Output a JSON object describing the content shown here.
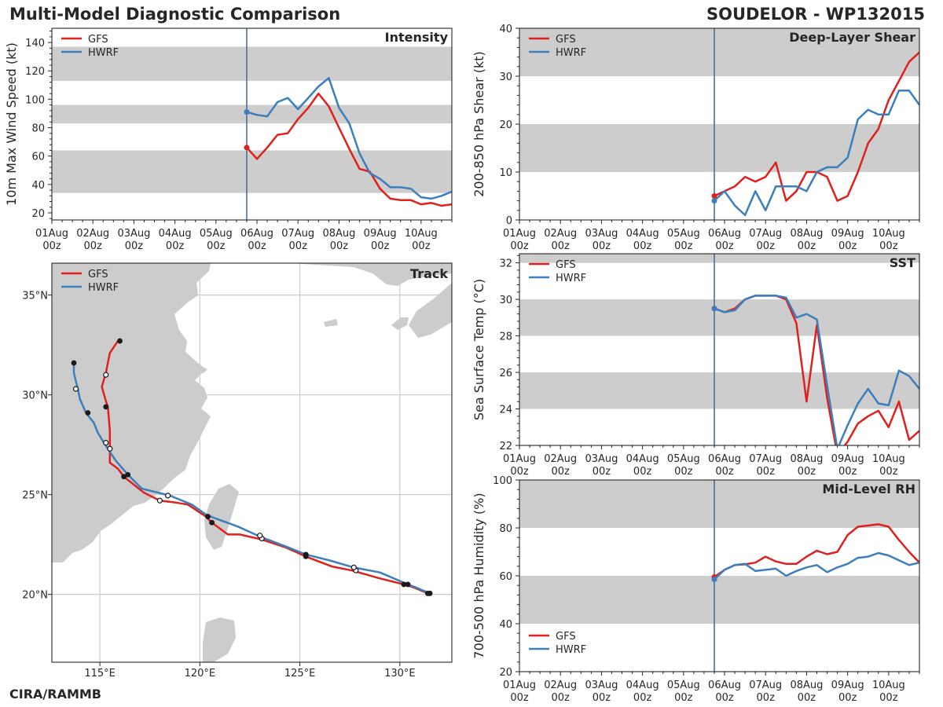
{
  "header": {
    "title": "Multi-Model Diagnostic Comparison",
    "storm": "SOUDELOR - WP132015",
    "credit": "CIRA/RAMMB"
  },
  "colors": {
    "gfs": "#e0201c",
    "hwrf": "#3b7fbc",
    "band": "#cdcdcd",
    "initline": "#4a6f9a",
    "land": "#cccccc",
    "grid": "#cccccc"
  },
  "chart_data": [
    {
      "id": "intensity",
      "type": "line",
      "title": "Intensity",
      "ylabel": "10m Max Wind Speed (kt)",
      "xlim": [
        0,
        9.75
      ],
      "ylim": [
        15,
        150
      ],
      "yticks": [
        20,
        40,
        60,
        80,
        100,
        120,
        140
      ],
      "xticks": [
        0,
        1,
        2,
        3,
        4,
        5,
        6,
        7,
        8,
        9
      ],
      "xtick_labels": [
        [
          "01Aug",
          "00z"
        ],
        [
          "02Aug",
          "00z"
        ],
        [
          "03Aug",
          "00z"
        ],
        [
          "04Aug",
          "00z"
        ],
        [
          "05Aug",
          "00z"
        ],
        [
          "06Aug",
          "00z"
        ],
        [
          "07Aug",
          "00z"
        ],
        [
          "08Aug",
          "00z"
        ],
        [
          "09Aug",
          "00z"
        ],
        [
          "10Aug",
          "00z"
        ]
      ],
      "bands": [
        [
          34,
          64
        ],
        [
          83,
          96
        ],
        [
          113,
          137
        ]
      ],
      "init_x": 4.75,
      "legend": [
        "GFS",
        "HWRF"
      ],
      "series": [
        {
          "name": "GFS",
          "x": [
            4.75,
            5,
            5.25,
            5.5,
            5.75,
            6,
            6.25,
            6.5,
            6.75,
            7,
            7.25,
            7.5,
            7.75,
            8,
            8.25,
            8.5,
            8.75,
            9,
            9.25,
            9.5,
            9.75
          ],
          "y": [
            66,
            58,
            66,
            75,
            76,
            86,
            94,
            104,
            95,
            80,
            65,
            51,
            49,
            37,
            30,
            29,
            29,
            26,
            27,
            25,
            26
          ]
        },
        {
          "name": "HWRF",
          "x": [
            4.75,
            5,
            5.25,
            5.5,
            5.75,
            6,
            6.25,
            6.5,
            6.75,
            7,
            7.25,
            7.5,
            7.75,
            8,
            8.25,
            8.5,
            8.75,
            9,
            9.25,
            9.5,
            9.75
          ],
          "y": [
            91,
            89,
            88,
            98,
            101,
            93,
            101,
            109,
            115,
            94,
            83,
            62,
            48,
            44,
            38,
            38,
            37,
            31,
            30,
            32,
            35
          ]
        }
      ]
    },
    {
      "id": "shear",
      "type": "line",
      "title": "Deep-Layer Shear",
      "ylabel": "200-850 hPa Shear (kt)",
      "xlim": [
        0,
        9.75
      ],
      "ylim": [
        0,
        40
      ],
      "yticks": [
        0,
        10,
        20,
        30,
        40
      ],
      "xticks": [
        0,
        1,
        2,
        3,
        4,
        5,
        6,
        7,
        8,
        9
      ],
      "xtick_labels": [
        [
          "01Aug",
          "00z"
        ],
        [
          "02Aug",
          "00z"
        ],
        [
          "03Aug",
          "00z"
        ],
        [
          "04Aug",
          "00z"
        ],
        [
          "05Aug",
          "00z"
        ],
        [
          "06Aug",
          "00z"
        ],
        [
          "07Aug",
          "00z"
        ],
        [
          "08Aug",
          "00z"
        ],
        [
          "09Aug",
          "00z"
        ],
        [
          "10Aug",
          "00z"
        ]
      ],
      "bands": [
        [
          10,
          20
        ],
        [
          30,
          40
        ]
      ],
      "init_x": 4.75,
      "legend": [
        "GFS",
        "HWRF"
      ],
      "series": [
        {
          "name": "GFS",
          "x": [
            4.75,
            5,
            5.25,
            5.5,
            5.75,
            6,
            6.25,
            6.5,
            6.75,
            7,
            7.25,
            7.5,
            7.75,
            8,
            8.25,
            8.5,
            8.75,
            9,
            9.25,
            9.5,
            9.75
          ],
          "y": [
            5,
            6,
            7,
            9,
            8,
            9,
            12,
            4,
            6,
            10,
            10,
            9,
            4,
            5,
            10,
            16,
            19,
            25,
            29,
            33,
            35
          ]
        },
        {
          "name": "HWRF",
          "x": [
            4.75,
            5,
            5.25,
            5.5,
            5.75,
            6,
            6.25,
            6.5,
            6.75,
            7,
            7.25,
            7.5,
            7.75,
            8,
            8.25,
            8.5,
            8.75,
            9,
            9.25,
            9.5,
            9.75
          ],
          "y": [
            4,
            6,
            3,
            1,
            6,
            2,
            7,
            7,
            7,
            6,
            10,
            11,
            11,
            13,
            21,
            23,
            22,
            22,
            27,
            27,
            24
          ]
        }
      ]
    },
    {
      "id": "sst",
      "type": "line",
      "title": "SST",
      "ylabel": "Sea Surface Temp (°C)",
      "xlim": [
        0,
        9.75
      ],
      "ylim": [
        22,
        32.5
      ],
      "yticks": [
        22,
        24,
        26,
        28,
        30,
        32
      ],
      "xticks": [
        0,
        1,
        2,
        3,
        4,
        5,
        6,
        7,
        8,
        9
      ],
      "xtick_labels": [
        [
          "01Aug",
          "00z"
        ],
        [
          "02Aug",
          "00z"
        ],
        [
          "03Aug",
          "00z"
        ],
        [
          "04Aug",
          "00z"
        ],
        [
          "05Aug",
          "00z"
        ],
        [
          "06Aug",
          "00z"
        ],
        [
          "07Aug",
          "00z"
        ],
        [
          "08Aug",
          "00z"
        ],
        [
          "09Aug",
          "00z"
        ],
        [
          "10Aug",
          "00z"
        ]
      ],
      "bands": [
        [
          24,
          26
        ],
        [
          28,
          30
        ],
        [
          32,
          34
        ]
      ],
      "init_x": 4.75,
      "legend": [
        "GFS",
        "HWRF"
      ],
      "series": [
        {
          "name": "GFS",
          "x": [
            4.75,
            5,
            5.25,
            5.5,
            5.75,
            6,
            6.25,
            6.5,
            6.75,
            7,
            7.25,
            7.5,
            7.75,
            8,
            8.25,
            8.5,
            8.75,
            9,
            9.25,
            9.5,
            9.75
          ],
          "y": [
            29.5,
            29.3,
            29.5,
            30.0,
            30.2,
            30.2,
            30.2,
            30.0,
            28.7,
            24.4,
            28.6,
            24.6,
            21.5,
            22.2,
            23.2,
            23.6,
            23.9,
            23.0,
            24.4,
            22.3,
            22.8
          ]
        },
        {
          "name": "HWRF",
          "x": [
            4.75,
            5,
            5.25,
            5.5,
            5.75,
            6,
            6.25,
            6.5,
            6.75,
            7,
            7.25,
            7.5,
            7.75,
            8,
            8.25,
            8.5,
            8.75,
            9,
            9.25,
            9.5,
            9.75
          ],
          "y": [
            29.5,
            29.3,
            29.4,
            30.0,
            30.2,
            30.2,
            30.2,
            30.1,
            29.0,
            29.2,
            28.9,
            25.3,
            21.8,
            23.1,
            24.3,
            25.1,
            24.3,
            24.2,
            26.1,
            25.8,
            25.1
          ]
        }
      ]
    },
    {
      "id": "rh",
      "type": "line",
      "title": "Mid-Level RH",
      "ylabel": "700-500 hPa Humidity (%)",
      "xlim": [
        0,
        9.75
      ],
      "ylim": [
        20,
        100
      ],
      "yticks": [
        20,
        40,
        60,
        80,
        100
      ],
      "xticks": [
        0,
        1,
        2,
        3,
        4,
        5,
        6,
        7,
        8,
        9
      ],
      "xtick_labels": [
        [
          "01Aug",
          "00z"
        ],
        [
          "02Aug",
          "00z"
        ],
        [
          "03Aug",
          "00z"
        ],
        [
          "04Aug",
          "00z"
        ],
        [
          "05Aug",
          "00z"
        ],
        [
          "06Aug",
          "00z"
        ],
        [
          "07Aug",
          "00z"
        ],
        [
          "08Aug",
          "00z"
        ],
        [
          "09Aug",
          "00z"
        ],
        [
          "10Aug",
          "00z"
        ]
      ],
      "bands": [
        [
          40,
          60
        ],
        [
          80,
          100
        ]
      ],
      "init_x": 4.75,
      "legend": [
        "GFS",
        "HWRF"
      ],
      "series": [
        {
          "name": "GFS",
          "x": [
            4.75,
            5,
            5.25,
            5.5,
            5.75,
            6,
            6.25,
            6.5,
            6.75,
            7,
            7.25,
            7.5,
            7.75,
            8,
            8.25,
            8.5,
            8.75,
            9,
            9.25,
            9.5,
            9.75
          ],
          "y": [
            59.5,
            62.5,
            64.5,
            64.8,
            65.5,
            68,
            66,
            65,
            65,
            68,
            70.5,
            69,
            70,
            77,
            80.5,
            81,
            81.5,
            80.5,
            75,
            70,
            65.5
          ]
        },
        {
          "name": "HWRF",
          "x": [
            4.75,
            5,
            5.25,
            5.5,
            5.75,
            6,
            6.25,
            6.5,
            6.75,
            7,
            7.25,
            7.5,
            7.75,
            8,
            8.25,
            8.5,
            8.75,
            9,
            9.25,
            9.5,
            9.75
          ],
          "y": [
            58.5,
            62.5,
            64.5,
            65,
            62,
            62.5,
            63,
            60,
            62,
            63.5,
            64.5,
            61.5,
            63.5,
            65,
            67.5,
            68,
            69.5,
            68.5,
            66.5,
            64.5,
            65.5
          ]
        }
      ]
    },
    {
      "id": "track",
      "type": "line",
      "title": "Track",
      "xlim": [
        112.6,
        132.6
      ],
      "ylim": [
        16.6,
        36.6
      ],
      "xticks": [
        115,
        120,
        125,
        130
      ],
      "xtick_labels": [
        "115°E",
        "120°E",
        "125°E",
        "130°E"
      ],
      "yticks": [
        20,
        25,
        30,
        35
      ],
      "ytick_labels": [
        "20°N",
        "25°N",
        "30°N",
        "35°N"
      ],
      "legend": [
        "GFS",
        "HWRF"
      ],
      "series": [
        {
          "name": "GFS",
          "lon": [
            131.4,
            130.7,
            130.2,
            129,
            127.6,
            126.6,
            125.3,
            124.3,
            123.1,
            122,
            121.4,
            120.6,
            120.3,
            119.4,
            118.8,
            118,
            117.2,
            116.2,
            115.9,
            115.5,
            115.5,
            115.4,
            115.3,
            115.1,
            115.3,
            115.5,
            115.9,
            116
          ],
          "lat": [
            20.05,
            20.35,
            20.5,
            20.8,
            21.2,
            21.4,
            21.9,
            22.35,
            22.75,
            23,
            23,
            23.6,
            23.9,
            24.5,
            24.6,
            24.7,
            25.1,
            25.9,
            26.3,
            26.6,
            28.2,
            29.4,
            29.7,
            30.4,
            31.1,
            32.1,
            32.7,
            32.7
          ],
          "filled": [
            [
              131.4,
              20.05
            ],
            [
              130.2,
              20.5
            ],
            [
              125.3,
              21.9
            ],
            [
              120.6,
              23.6
            ],
            [
              116.2,
              25.9
            ],
            [
              115.3,
              29.4
            ],
            [
              116,
              32.7
            ]
          ],
          "open": [
            [
              127.8,
              21.2
            ],
            [
              123.1,
              22.8
            ],
            [
              118.0,
              24.7
            ],
            [
              115.5,
              27.3
            ],
            [
              115.3,
              31.0
            ]
          ]
        },
        {
          "name": "HWRF",
          "lon": [
            131.5,
            130.8,
            130.4,
            129,
            127.7,
            126.5,
            125.3,
            124.3,
            123,
            121.9,
            120.8,
            120.3,
            119.6,
            118.5,
            117.1,
            116.4,
            115.8,
            115.2,
            114.9,
            114.7,
            114.3,
            114.0,
            113.9,
            113.8,
            113.7,
            113.7
          ],
          "lat": [
            20.05,
            20.35,
            20.5,
            21.1,
            21.35,
            21.7,
            22.0,
            22.4,
            22.9,
            23.4,
            23.8,
            24.0,
            24.5,
            24.95,
            25.3,
            26.0,
            26.7,
            27.6,
            28.1,
            28.6,
            29.1,
            29.8,
            30.3,
            30.7,
            31.1,
            31.6
          ],
          "filled": [
            [
              131.5,
              20.05
            ],
            [
              130.4,
              20.5
            ],
            [
              125.3,
              22.0
            ],
            [
              120.4,
              23.9
            ],
            [
              116.4,
              26.0
            ],
            [
              114.4,
              29.1
            ],
            [
              113.7,
              31.6
            ]
          ],
          "open": [
            [
              127.7,
              21.35
            ],
            [
              123,
              22.95
            ],
            [
              118.4,
              24.95
            ],
            [
              115.3,
              27.6
            ],
            [
              113.8,
              30.3
            ]
          ]
        }
      ]
    }
  ]
}
